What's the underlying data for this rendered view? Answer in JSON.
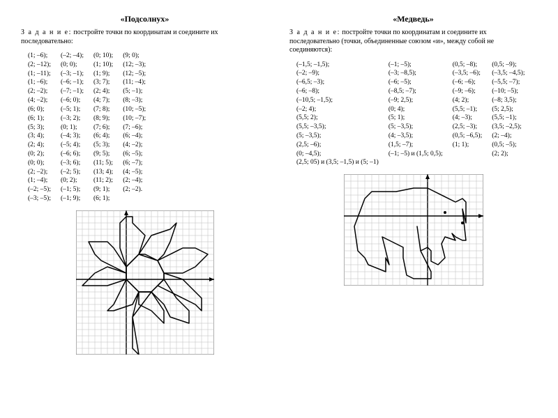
{
  "left": {
    "title": "«Подсолнух»",
    "task_lead": "З а д а н и е:",
    "task_text": " постройте точки по координатам и соедините их последовательно:",
    "columns": [
      [
        "(1; –6);",
        "(2; –12);",
        "(1; –11);",
        "(1; –6);",
        "(2; –2);",
        "(4; –2);",
        "(6; 0);",
        "(6; 1);",
        "(5; 3);",
        "(3; 4);",
        "(2; 4);",
        "(0; 2);",
        "(0; 0);",
        "(2; –2);",
        "(1; –4);",
        "(–2; –5);",
        "(–3; –5);"
      ],
      [
        "(–2; –4);",
        "(0; 0);",
        "(–3; –1);",
        "(–6; –1);",
        "(–7; –1);",
        "(–6; 0);",
        "(–5; 1);",
        "(–3; 2);",
        "(0; 1);",
        "(–4; 3);",
        "(–5; 4);",
        "(–6; 6);",
        "(–3; 6);",
        "(–2; 5);",
        "(0; 2);",
        "(–1; 5);",
        "(–1; 9);"
      ],
      [
        "(0; 10);",
        "(1; 10);",
        "(1; 9);",
        "(3; 7);",
        "(2; 4);",
        "(4; 7);",
        "(7; 8);",
        "(8; 9);",
        "(7; 6);",
        "(6; 4);",
        "(5; 3);",
        "(9; 5);",
        "(11; 5);",
        "(13; 4);",
        "(11; 2);",
        "(9; 1);",
        "(6; 1);"
      ],
      [
        "(9; 0);",
        "(12; –3);",
        "(12; –5);",
        "(11; –4);",
        "(5; –1);",
        "(8; –3);",
        "(10; –5);",
        "(10; –7);",
        "(7; –6);",
        "(6; –4);",
        "(4; –2);",
        "(6; –5);",
        "(6; –7);",
        "(4; –5);",
        "(2; –4);",
        "(2; –2)."
      ]
    ],
    "figure": {
      "center_polygon": [
        [
          0,
          0
        ],
        [
          2,
          -2
        ],
        [
          4,
          -2
        ],
        [
          6,
          0
        ],
        [
          6,
          1
        ],
        [
          5,
          3
        ],
        [
          3,
          4
        ],
        [
          2,
          4
        ],
        [
          0,
          2
        ]
      ],
      "petals": [
        [
          [
            2,
            -2
          ],
          [
            1,
            -6
          ],
          [
            2,
            -12
          ],
          [
            1,
            -11
          ],
          [
            1,
            -6
          ],
          [
            4,
            -2
          ]
        ],
        [
          [
            0,
            0
          ],
          [
            -2,
            -4
          ],
          [
            -3,
            -5
          ],
          [
            -2,
            -5
          ],
          [
            1,
            -4
          ],
          [
            2,
            -2
          ]
        ],
        [
          [
            0,
            0
          ],
          [
            -3,
            -1
          ],
          [
            -7,
            -1
          ],
          [
            -6,
            0
          ],
          [
            -5,
            1
          ],
          [
            -3,
            2
          ],
          [
            0,
            1
          ]
        ],
        [
          [
            0,
            2
          ],
          [
            -1,
            5
          ],
          [
            -1,
            9
          ],
          [
            0,
            10
          ],
          [
            1,
            10
          ],
          [
            1,
            9
          ],
          [
            3,
            7
          ],
          [
            2,
            4
          ]
        ],
        [
          [
            0,
            2
          ],
          [
            -2,
            5
          ],
          [
            -3,
            6
          ],
          [
            -6,
            6
          ],
          [
            -5,
            4
          ],
          [
            -4,
            3
          ],
          [
            0,
            1
          ]
        ],
        [
          [
            2,
            4
          ],
          [
            4,
            7
          ],
          [
            7,
            8
          ],
          [
            8,
            9
          ],
          [
            7,
            6
          ],
          [
            6,
            4
          ],
          [
            5,
            3
          ]
        ],
        [
          [
            5,
            3
          ],
          [
            9,
            5
          ],
          [
            11,
            5
          ],
          [
            13,
            4
          ],
          [
            11,
            2
          ],
          [
            9,
            1
          ],
          [
            6,
            1
          ]
        ],
        [
          [
            6,
            1
          ],
          [
            9,
            0
          ],
          [
            12,
            -3
          ],
          [
            12,
            -5
          ],
          [
            11,
            -4
          ],
          [
            5,
            -1
          ],
          [
            6,
            0
          ]
        ],
        [
          [
            6,
            0
          ],
          [
            8,
            -3
          ],
          [
            10,
            -5
          ],
          [
            10,
            -7
          ],
          [
            7,
            -6
          ],
          [
            6,
            -4
          ],
          [
            4,
            -2
          ]
        ],
        [
          [
            4,
            -2
          ],
          [
            6,
            -5
          ],
          [
            6,
            -7
          ],
          [
            4,
            -5
          ],
          [
            2,
            -4
          ],
          [
            2,
            -2
          ]
        ]
      ],
      "grid": {
        "xmin": -8,
        "xmax": 14,
        "ymin": -12,
        "ymax": 11,
        "cell": 9
      },
      "colors": {
        "grid": "#bdbdbd",
        "axis": "#000000",
        "line": "#000000",
        "bg": "#ffffff"
      }
    }
  },
  "right": {
    "title": "«Медведь»",
    "task_lead": "З а д а н и е:",
    "task_text": " постройте точки по координатам и соедините их последовательно (точки, объединенные союзом «и», между собой не соединяются):",
    "columns": [
      [
        "(–1,5; –1,5);",
        "(–2; –9);",
        "(–6,5; –3);",
        "(–6; –8);",
        "(–10,5; –1,5);",
        "(–2; 4);",
        "(5,5; 2);",
        "(5,5; –3,5);",
        "(5; –3,5);",
        "(2,5; –6);",
        "(0; –4,5);",
        "(2,5; 05) и (3,5; –1,5) и (5; –1)"
      ],
      [
        "(–1; –5);",
        "(–3; –8,5);",
        "(–6; –5);",
        "(–8,5; –7);",
        "(–9; 2,5);",
        "(0; 4);",
        "(5; 1);",
        "(5; –3,5);",
        "(4; –3,5);",
        "(1,5; –7);",
        "(–1; –5) и (1,5; 0,5);"
      ],
      [
        "(0,5; –8);",
        "(–3,5; –6);",
        "(–6; –6);",
        "(–9; –6);",
        "(4; 2);",
        "(5,5; –1);",
        "(4; –3);",
        "(2,5; –3);",
        "(0,5; –6,5);",
        "(1; 1);"
      ],
      [
        "(0,5; –9);",
        "(–3,5; –4,5);",
        "(–5,5; –7);",
        "(–10; –5);",
        "(–8; 3,5);",
        "(5; 2,5);",
        "(5,5; –1);",
        "(3,5; –2,5);",
        "(2; –4);",
        "(0,5; –5);",
        "(2; 2);"
      ]
    ],
    "figure": {
      "outline": [
        [
          -10.5,
          -1.5
        ],
        [
          -9,
          2.5
        ],
        [
          -8,
          3.5
        ],
        [
          -4.5,
          3.5
        ],
        [
          -2,
          4
        ],
        [
          0,
          4
        ],
        [
          4,
          2
        ],
        [
          5,
          2.5
        ],
        [
          5.5,
          2
        ],
        [
          5.5,
          -1
        ],
        [
          5,
          1
        ],
        [
          5.5,
          -3.5
        ],
        [
          5,
          -3.5
        ],
        [
          4,
          -3
        ],
        [
          3.5,
          -2.5
        ],
        [
          4,
          -3.5
        ],
        [
          2.5,
          -3
        ],
        [
          2,
          -4
        ],
        [
          2.5,
          -6
        ],
        [
          1.5,
          -7
        ],
        [
          0.5,
          -6.5
        ],
        [
          0.5,
          -5
        ],
        [
          0,
          -4.5
        ],
        [
          -1,
          -5
        ],
        [
          -1.5,
          -1.5
        ],
        [
          -1,
          -5
        ],
        [
          0.5,
          -8
        ],
        [
          0.5,
          -9
        ],
        [
          -2,
          -9
        ],
        [
          -3,
          -8.5
        ],
        [
          -3.5,
          -6
        ],
        [
          -3.5,
          -4.5
        ],
        [
          -6.5,
          -3
        ],
        [
          -6,
          -5
        ],
        [
          -5.5,
          -7
        ],
        [
          -6,
          -6
        ],
        [
          -6,
          -8
        ],
        [
          -8.5,
          -7
        ],
        [
          -9,
          -6
        ],
        [
          -10,
          -5
        ],
        [
          -10.5,
          -1.5
        ]
      ],
      "eye": [
        2.5,
        0.5
      ],
      "nose": [
        5,
        -1
      ],
      "grid": {
        "xmin": -12,
        "xmax": 8,
        "ymin": -10,
        "ymax": 6,
        "cell": 10
      },
      "colors": {
        "grid": "#bdbdbd",
        "axis": "#000000",
        "line": "#000000",
        "bg": "#ffffff"
      }
    }
  }
}
